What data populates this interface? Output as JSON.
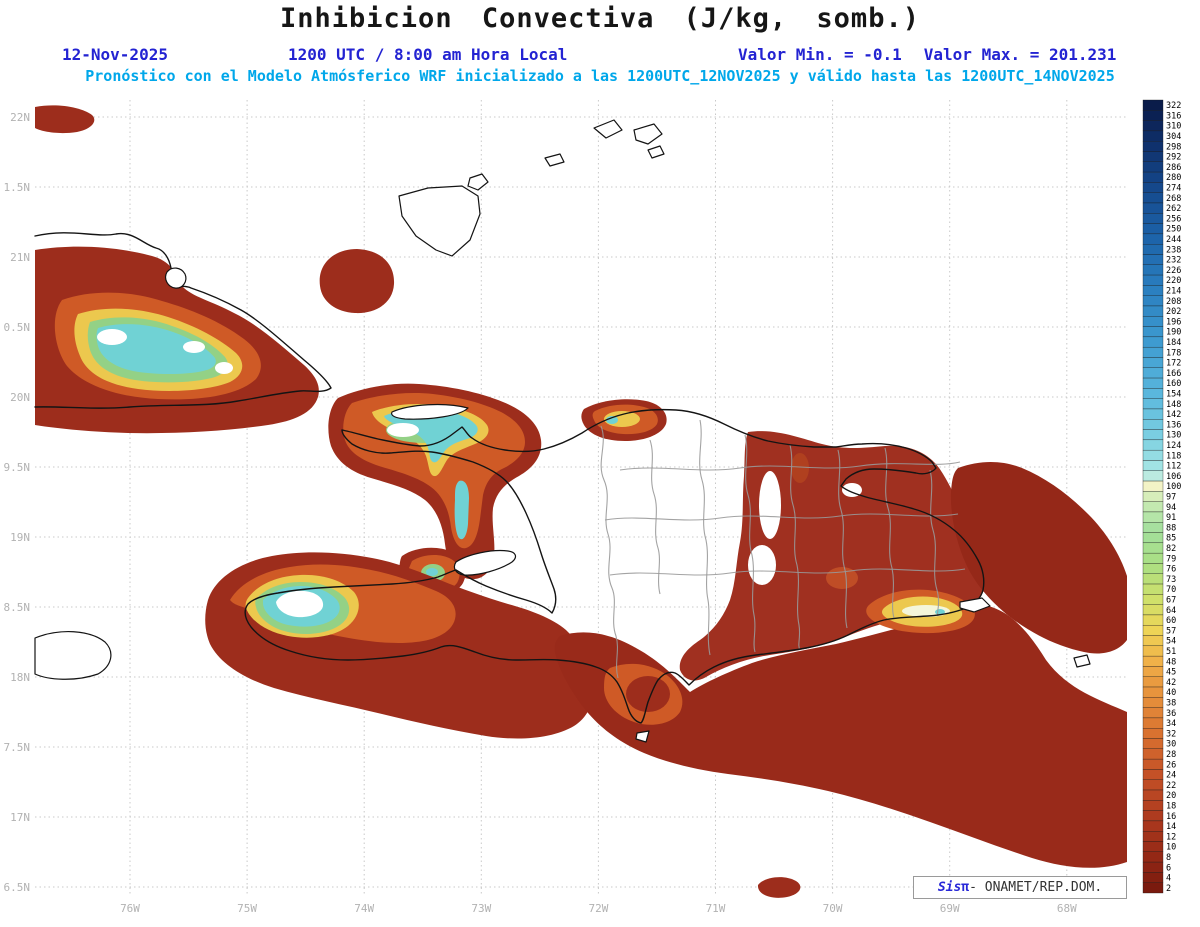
{
  "header": {
    "title": "Inhibicion Convectiva (J/kg, somb.)",
    "date": "12-Nov-2025",
    "time": "1200 UTC / 8:00 am Hora Local",
    "min_label": "Valor Min. = -0.1",
    "max_label": "Valor Max. = 201.231",
    "forecast_line": "Pronóstico con el Modelo Atmósferico WRF inicializado a las 1200UTC_12NOV2025 y válido hasta las  1200UTC_14NOV2025"
  },
  "map": {
    "lat_labels": [
      "22N",
      "1.5N",
      "21N",
      "0.5N",
      "20N",
      "9.5N",
      "19N",
      "8.5N",
      "18N",
      "7.5N",
      "17N",
      "6.5N"
    ],
    "lon_labels": [
      "76W",
      "75W",
      "74W",
      "73W",
      "72W",
      "71W",
      "70W",
      "69W",
      "68W"
    ]
  },
  "colorbar": {
    "unit": "J/kg",
    "values": [
      322,
      316,
      310,
      304,
      298,
      292,
      286,
      280,
      274,
      268,
      262,
      256,
      250,
      244,
      238,
      232,
      226,
      220,
      214,
      208,
      202,
      196,
      190,
      184,
      178,
      172,
      166,
      160,
      154,
      148,
      142,
      136,
      130,
      124,
      118,
      112,
      106,
      100,
      97,
      94,
      91,
      88,
      85,
      82,
      79,
      76,
      73,
      70,
      67,
      64,
      60,
      57,
      54,
      51,
      48,
      45,
      42,
      40,
      38,
      36,
      34,
      32,
      30,
      28,
      26,
      24,
      22,
      20,
      18,
      16,
      14,
      12,
      10,
      8,
      6,
      4,
      2
    ],
    "stops": [
      {
        "v": 322,
        "c": "#0a1c4a"
      },
      {
        "v": 300,
        "c": "#0f2f6a"
      },
      {
        "v": 272,
        "c": "#154a8e"
      },
      {
        "v": 244,
        "c": "#1d64aa"
      },
      {
        "v": 214,
        "c": "#2b80c0"
      },
      {
        "v": 184,
        "c": "#3e9bd0"
      },
      {
        "v": 154,
        "c": "#5ab7dd"
      },
      {
        "v": 128,
        "c": "#7dd0e2"
      },
      {
        "v": 109,
        "c": "#a8e6e4"
      },
      {
        "v": 102,
        "c": "#d5f0da"
      },
      {
        "v": 100,
        "c": "#f3f3c6"
      },
      {
        "v": 96,
        "c": "#cdecb6"
      },
      {
        "v": 87,
        "c": "#a2df9c"
      },
      {
        "v": 77,
        "c": "#abdf82"
      },
      {
        "v": 67,
        "c": "#d0e06a"
      },
      {
        "v": 57,
        "c": "#eed456"
      },
      {
        "v": 48,
        "c": "#f0b149"
      },
      {
        "v": 40,
        "c": "#e7943d"
      },
      {
        "v": 32,
        "c": "#d97230"
      },
      {
        "v": 24,
        "c": "#c45127"
      },
      {
        "v": 16,
        "c": "#ae3b1f"
      },
      {
        "v": 8,
        "c": "#942815"
      },
      {
        "v": 2,
        "c": "#7a1a0e"
      }
    ],
    "fill_colors": {
      "dark_red": "#9d2d1c",
      "orange": "#cf5a26",
      "yellow": "#ecc84e",
      "green": "#93d186",
      "cyan": "#70d2d4",
      "pale": "#f4f6da"
    }
  },
  "credit": {
    "sis": "Sis",
    "pi": "π",
    "rest": "- ONAMET/REP.DOM."
  }
}
